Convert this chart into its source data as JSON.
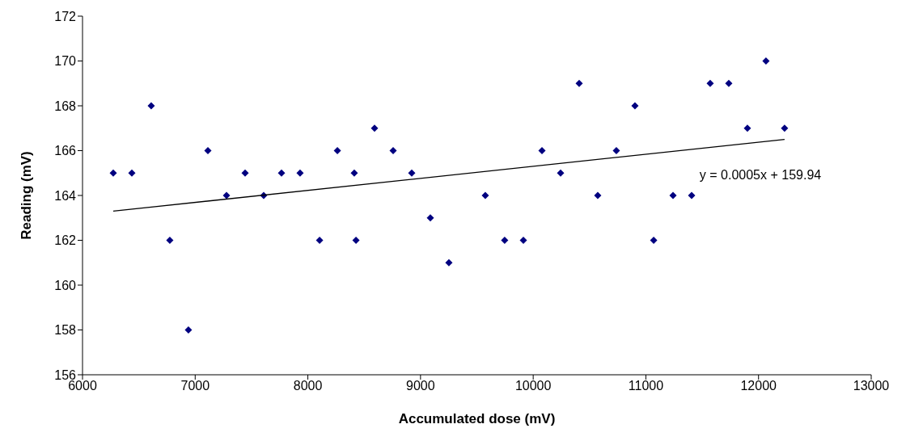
{
  "chart_data": {
    "type": "scatter",
    "xlabel": "Accumulated dose (mV)",
    "ylabel": "Reading (mV)",
    "xlim": [
      6000,
      13000
    ],
    "xticks": [
      6000,
      7000,
      8000,
      9000,
      10000,
      11000,
      12000,
      13000
    ],
    "ylim": [
      156,
      172
    ],
    "yticks": [
      156,
      158,
      160,
      162,
      164,
      166,
      168,
      170,
      172
    ],
    "annotations": [
      "y = 0.0005x + 159.94"
    ],
    "series": [
      {
        "marker": "diamond",
        "color": "#000080",
        "x": [
          6273,
          6438,
          6610,
          6775,
          6940,
          7113,
          7278,
          7443,
          7608,
          7766,
          7931,
          8104,
          8262,
          8412,
          8427,
          8592,
          8757,
          8922,
          9087,
          9252,
          9575,
          9747,
          9913,
          10078,
          10243,
          10408,
          10573,
          10738,
          10903,
          11069,
          11241,
          11406,
          11571,
          11736,
          11901,
          12066,
          12231
        ],
        "values": [
          165,
          165,
          168,
          162,
          158,
          166,
          164,
          165,
          164,
          165,
          165,
          162,
          166,
          165,
          162,
          167,
          166,
          165,
          163,
          161,
          164,
          162,
          162,
          166,
          165,
          169,
          164,
          166,
          168,
          162,
          164,
          164,
          169,
          169,
          167,
          170,
          167
        ]
      },
      {
        "type": "line",
        "color": "#000000",
        "x": [
          6273,
          12231
        ],
        "values": [
          163.3,
          166.5
        ]
      }
    ]
  }
}
